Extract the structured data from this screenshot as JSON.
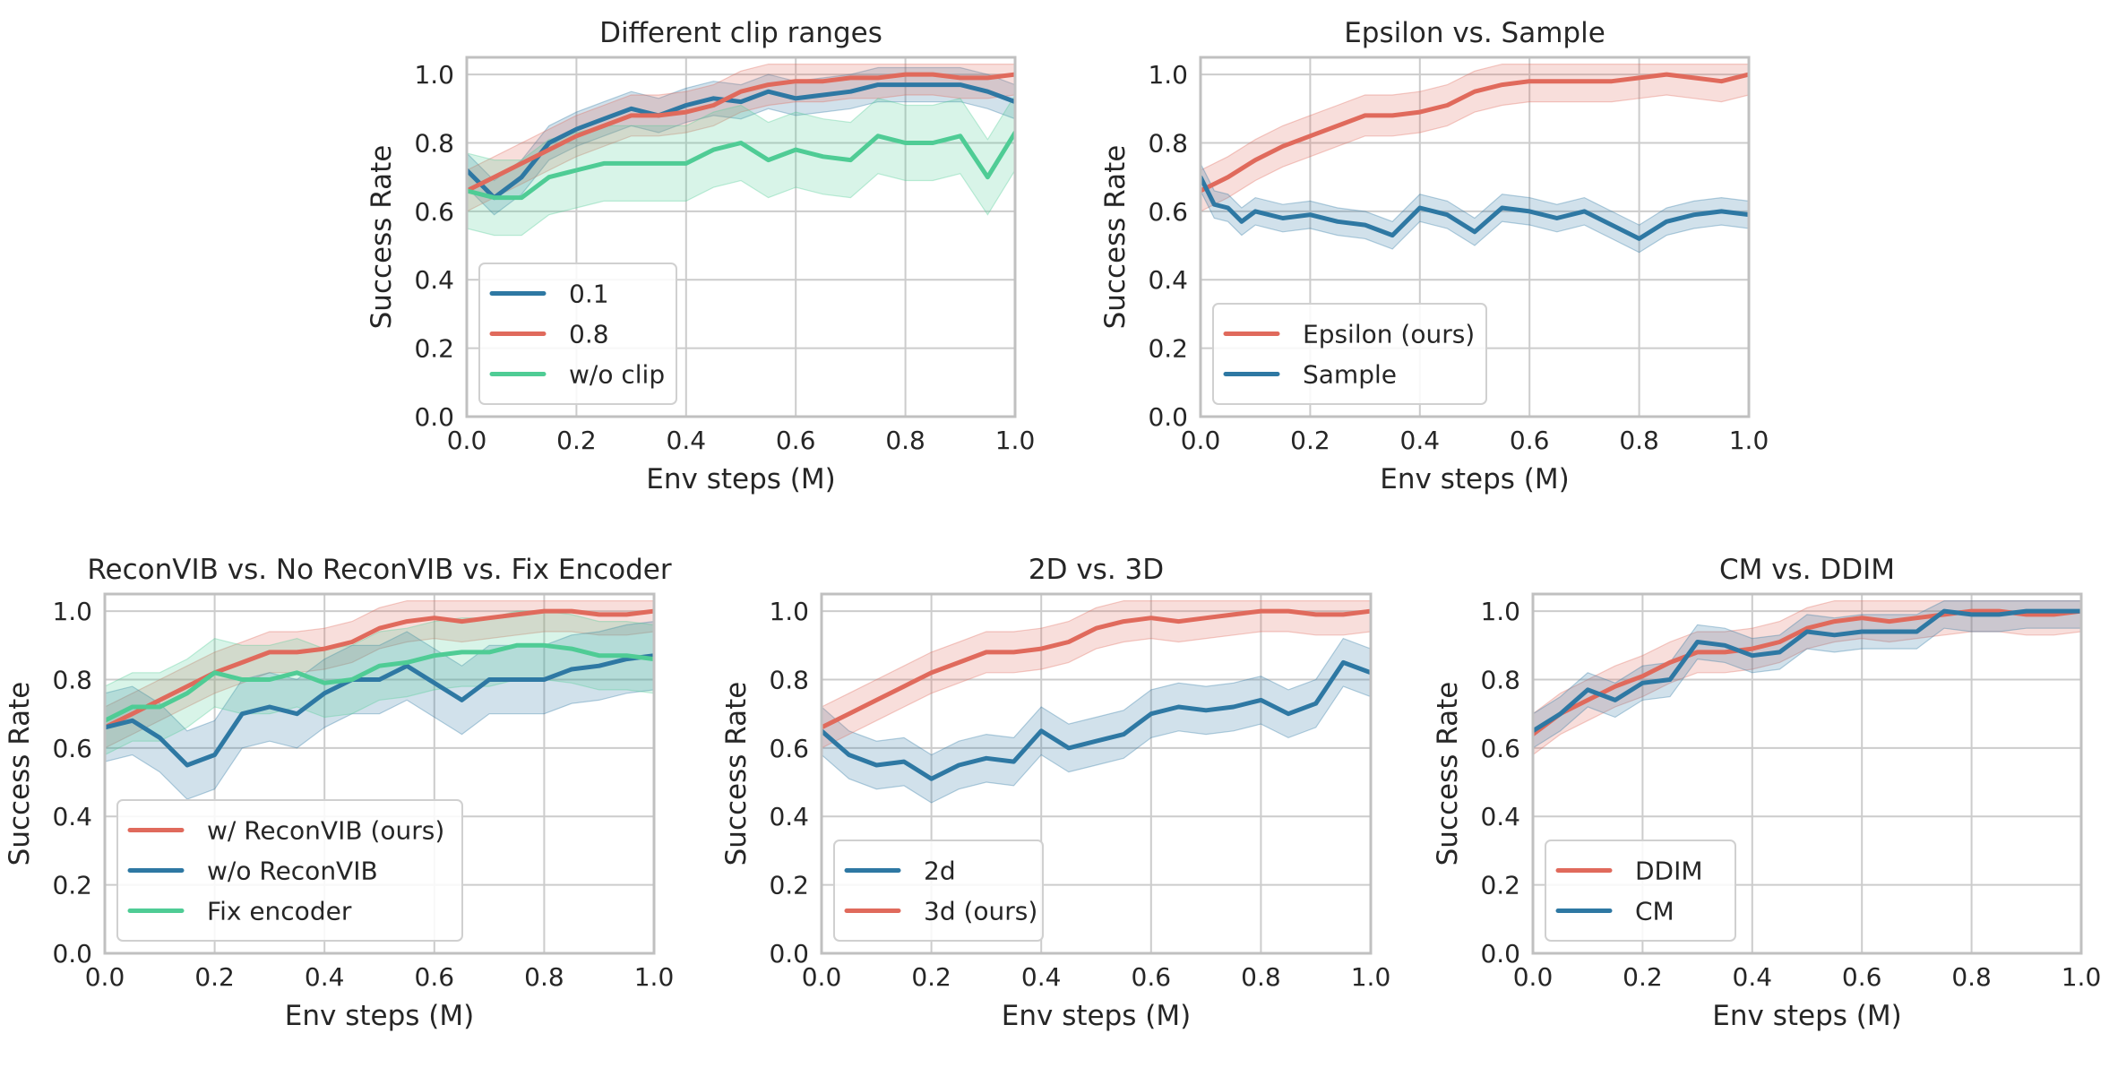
{
  "palette": {
    "red": "#E06A5C",
    "blue": "#2E78A3",
    "green": "#4FCC95",
    "grid": "#CCCCCC",
    "frame": "#C0C0C0"
  },
  "chart_data": [
    {
      "id": "p1",
      "type": "line",
      "title": "Different clip ranges",
      "xlabel": "Env steps (M)",
      "ylabel": "Success Rate",
      "xlim": [
        0,
        1
      ],
      "ylim": [
        0,
        1.05
      ],
      "xticks": [
        "0.0",
        "0.2",
        "0.4",
        "0.6",
        "0.8",
        "1.0"
      ],
      "yticks": [
        "0.0",
        "0.2",
        "0.4",
        "0.6",
        "0.8",
        "1.0"
      ],
      "grid": true,
      "legend_loc": "lower-left",
      "series": [
        {
          "name": "0.1",
          "color": "blue",
          "band": 0.05,
          "x": [
            0,
            0.05,
            0.1,
            0.15,
            0.2,
            0.25,
            0.3,
            0.35,
            0.4,
            0.45,
            0.5,
            0.55,
            0.6,
            0.65,
            0.7,
            0.75,
            0.8,
            0.85,
            0.9,
            0.95,
            1.0
          ],
          "y": [
            0.72,
            0.64,
            0.7,
            0.8,
            0.84,
            0.87,
            0.9,
            0.88,
            0.91,
            0.93,
            0.92,
            0.95,
            0.93,
            0.94,
            0.95,
            0.97,
            0.97,
            0.97,
            0.97,
            0.95,
            0.92
          ]
        },
        {
          "name": "0.8",
          "color": "red",
          "band": 0.06,
          "x": [
            0,
            0.05,
            0.1,
            0.15,
            0.2,
            0.25,
            0.3,
            0.35,
            0.4,
            0.45,
            0.5,
            0.55,
            0.6,
            0.65,
            0.7,
            0.75,
            0.8,
            0.85,
            0.9,
            0.95,
            1.0
          ],
          "y": [
            0.66,
            0.7,
            0.74,
            0.78,
            0.82,
            0.85,
            0.88,
            0.88,
            0.89,
            0.91,
            0.95,
            0.97,
            0.98,
            0.98,
            0.99,
            0.99,
            1.0,
            1.0,
            0.99,
            0.99,
            1.0
          ]
        },
        {
          "name": "w/o clip",
          "color": "green",
          "band": 0.11,
          "x": [
            0,
            0.05,
            0.1,
            0.15,
            0.2,
            0.25,
            0.3,
            0.35,
            0.4,
            0.45,
            0.5,
            0.55,
            0.6,
            0.65,
            0.7,
            0.75,
            0.8,
            0.85,
            0.9,
            0.95,
            1.0
          ],
          "y": [
            0.66,
            0.64,
            0.64,
            0.7,
            0.72,
            0.74,
            0.74,
            0.74,
            0.74,
            0.78,
            0.8,
            0.75,
            0.78,
            0.76,
            0.75,
            0.82,
            0.8,
            0.8,
            0.82,
            0.7,
            0.83
          ]
        }
      ]
    },
    {
      "id": "p2",
      "type": "line",
      "title": "Epsilon vs. Sample",
      "xlabel": "Env steps (M)",
      "ylabel": "Success Rate",
      "xlim": [
        0,
        1
      ],
      "ylim": [
        0,
        1.05
      ],
      "xticks": [
        "0.0",
        "0.2",
        "0.4",
        "0.6",
        "0.8",
        "1.0"
      ],
      "yticks": [
        "0.0",
        "0.2",
        "0.4",
        "0.6",
        "0.8",
        "1.0"
      ],
      "grid": true,
      "legend_loc": "lower-left",
      "series": [
        {
          "name": "Epsilon (ours)",
          "color": "red",
          "band": 0.06,
          "x": [
            0,
            0.05,
            0.1,
            0.15,
            0.2,
            0.25,
            0.3,
            0.35,
            0.4,
            0.45,
            0.5,
            0.55,
            0.6,
            0.65,
            0.7,
            0.75,
            0.8,
            0.85,
            0.9,
            0.95,
            1.0
          ],
          "y": [
            0.66,
            0.7,
            0.75,
            0.79,
            0.82,
            0.85,
            0.88,
            0.88,
            0.89,
            0.91,
            0.95,
            0.97,
            0.98,
            0.98,
            0.98,
            0.98,
            0.99,
            1.0,
            0.99,
            0.98,
            1.0
          ]
        },
        {
          "name": "Sample",
          "color": "blue",
          "band": 0.04,
          "x": [
            0,
            0.025,
            0.05,
            0.075,
            0.1,
            0.15,
            0.2,
            0.25,
            0.3,
            0.35,
            0.4,
            0.45,
            0.5,
            0.55,
            0.6,
            0.65,
            0.7,
            0.75,
            0.8,
            0.85,
            0.9,
            0.95,
            1.0
          ],
          "y": [
            0.7,
            0.62,
            0.61,
            0.57,
            0.6,
            0.58,
            0.59,
            0.57,
            0.56,
            0.53,
            0.61,
            0.59,
            0.54,
            0.61,
            0.6,
            0.58,
            0.6,
            0.56,
            0.52,
            0.57,
            0.59,
            0.6,
            0.59
          ]
        }
      ]
    },
    {
      "id": "p3",
      "type": "line",
      "title": "ReconVIB vs. No ReconVIB vs. Fix Encoder",
      "xlabel": "Env steps (M)",
      "ylabel": "Success Rate",
      "xlim": [
        0,
        1
      ],
      "ylim": [
        0,
        1.05
      ],
      "xticks": [
        "0.0",
        "0.2",
        "0.4",
        "0.6",
        "0.8",
        "1.0"
      ],
      "yticks": [
        "0.0",
        "0.2",
        "0.4",
        "0.6",
        "0.8",
        "1.0"
      ],
      "grid": true,
      "legend_loc": "lower-left",
      "series": [
        {
          "name": "w/ ReconVIB (ours)",
          "color": "red",
          "band": 0.06,
          "x": [
            0,
            0.05,
            0.1,
            0.15,
            0.2,
            0.25,
            0.3,
            0.35,
            0.4,
            0.45,
            0.5,
            0.55,
            0.6,
            0.65,
            0.7,
            0.75,
            0.8,
            0.85,
            0.9,
            0.95,
            1.0
          ],
          "y": [
            0.66,
            0.7,
            0.74,
            0.78,
            0.82,
            0.85,
            0.88,
            0.88,
            0.89,
            0.91,
            0.95,
            0.97,
            0.98,
            0.97,
            0.98,
            0.99,
            1.0,
            1.0,
            0.99,
            0.99,
            1.0
          ]
        },
        {
          "name": "w/o ReconVIB",
          "color": "blue",
          "band": 0.1,
          "x": [
            0,
            0.05,
            0.1,
            0.15,
            0.2,
            0.25,
            0.3,
            0.35,
            0.4,
            0.45,
            0.5,
            0.55,
            0.6,
            0.65,
            0.7,
            0.75,
            0.8,
            0.85,
            0.9,
            0.95,
            1.0
          ],
          "y": [
            0.66,
            0.68,
            0.63,
            0.55,
            0.58,
            0.7,
            0.72,
            0.7,
            0.76,
            0.8,
            0.8,
            0.84,
            0.79,
            0.74,
            0.8,
            0.8,
            0.8,
            0.83,
            0.84,
            0.86,
            0.87
          ]
        },
        {
          "name": "Fix encoder",
          "color": "green",
          "band": 0.1,
          "x": [
            0,
            0.05,
            0.1,
            0.15,
            0.2,
            0.25,
            0.3,
            0.35,
            0.4,
            0.45,
            0.5,
            0.55,
            0.6,
            0.65,
            0.7,
            0.75,
            0.8,
            0.85,
            0.9,
            0.95,
            1.0
          ],
          "y": [
            0.68,
            0.72,
            0.72,
            0.76,
            0.82,
            0.8,
            0.8,
            0.82,
            0.79,
            0.8,
            0.84,
            0.85,
            0.87,
            0.88,
            0.88,
            0.9,
            0.9,
            0.89,
            0.87,
            0.87,
            0.86
          ]
        }
      ]
    },
    {
      "id": "p4",
      "type": "line",
      "title": "2D vs. 3D",
      "xlabel": "Env steps (M)",
      "ylabel": "Success Rate",
      "xlim": [
        0,
        1
      ],
      "ylim": [
        0,
        1.05
      ],
      "xticks": [
        "0.0",
        "0.2",
        "0.4",
        "0.6",
        "0.8",
        "1.0"
      ],
      "yticks": [
        "0.0",
        "0.2",
        "0.4",
        "0.6",
        "0.8",
        "1.0"
      ],
      "grid": true,
      "legend_loc": "lower-left",
      "series": [
        {
          "name": "2d",
          "color": "blue",
          "band": 0.07,
          "x": [
            0,
            0.05,
            0.1,
            0.15,
            0.2,
            0.25,
            0.3,
            0.35,
            0.4,
            0.45,
            0.5,
            0.55,
            0.6,
            0.65,
            0.7,
            0.75,
            0.8,
            0.85,
            0.9,
            0.95,
            1.0
          ],
          "y": [
            0.65,
            0.58,
            0.55,
            0.56,
            0.51,
            0.55,
            0.57,
            0.56,
            0.65,
            0.6,
            0.62,
            0.64,
            0.7,
            0.72,
            0.71,
            0.72,
            0.74,
            0.7,
            0.73,
            0.85,
            0.82
          ]
        },
        {
          "name": "3d (ours)",
          "color": "red",
          "band": 0.06,
          "x": [
            0,
            0.05,
            0.1,
            0.15,
            0.2,
            0.25,
            0.3,
            0.35,
            0.4,
            0.45,
            0.5,
            0.55,
            0.6,
            0.65,
            0.7,
            0.75,
            0.8,
            0.85,
            0.9,
            0.95,
            1.0
          ],
          "y": [
            0.66,
            0.7,
            0.74,
            0.78,
            0.82,
            0.85,
            0.88,
            0.88,
            0.89,
            0.91,
            0.95,
            0.97,
            0.98,
            0.97,
            0.98,
            0.99,
            1.0,
            1.0,
            0.99,
            0.99,
            1.0
          ]
        }
      ]
    },
    {
      "id": "p5",
      "type": "line",
      "title": "CM vs. DDIM",
      "xlabel": "Env steps (M)",
      "ylabel": "Success Rate",
      "xlim": [
        0,
        1
      ],
      "ylim": [
        0,
        1.05
      ],
      "xticks": [
        "0.0",
        "0.2",
        "0.4",
        "0.6",
        "0.8",
        "1.0"
      ],
      "yticks": [
        "0.0",
        "0.2",
        "0.4",
        "0.6",
        "0.8",
        "1.0"
      ],
      "grid": true,
      "legend_loc": "lower-left",
      "series": [
        {
          "name": "DDIM",
          "color": "red",
          "band": 0.06,
          "x": [
            0,
            0.05,
            0.1,
            0.15,
            0.2,
            0.25,
            0.3,
            0.35,
            0.4,
            0.45,
            0.5,
            0.55,
            0.6,
            0.65,
            0.7,
            0.75,
            0.8,
            0.85,
            0.9,
            0.95,
            1.0
          ],
          "y": [
            0.64,
            0.7,
            0.74,
            0.78,
            0.81,
            0.85,
            0.88,
            0.88,
            0.89,
            0.91,
            0.95,
            0.97,
            0.98,
            0.97,
            0.98,
            0.99,
            1.0,
            1.0,
            0.99,
            0.99,
            1.0
          ]
        },
        {
          "name": "CM",
          "color": "blue",
          "band": 0.05,
          "x": [
            0,
            0.05,
            0.1,
            0.15,
            0.2,
            0.25,
            0.3,
            0.35,
            0.4,
            0.45,
            0.5,
            0.55,
            0.6,
            0.65,
            0.7,
            0.75,
            0.8,
            0.85,
            0.9,
            0.95,
            1.0
          ],
          "y": [
            0.65,
            0.7,
            0.77,
            0.74,
            0.79,
            0.8,
            0.91,
            0.9,
            0.87,
            0.88,
            0.94,
            0.93,
            0.94,
            0.94,
            0.94,
            1.0,
            0.99,
            0.99,
            1.0,
            1.0,
            1.0
          ]
        }
      ]
    }
  ]
}
